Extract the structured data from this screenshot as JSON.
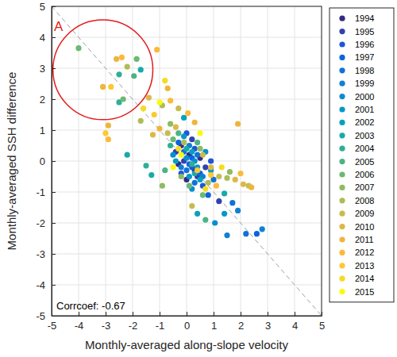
{
  "chart_data": {
    "type": "scatter",
    "x_label": "Monthly-averaged along-slope velocity",
    "y_label": "Monthly-averaged SSH difference",
    "xlim": [
      -5,
      5
    ],
    "ylim": [
      -5,
      5
    ],
    "xticks": [
      -5,
      -4,
      -3,
      -2,
      -1,
      0,
      1,
      2,
      3,
      4,
      5
    ],
    "yticks": [
      -5,
      -4,
      -3,
      -2,
      -1,
      0,
      1,
      2,
      3,
      4,
      5
    ],
    "grid": true,
    "legend": "right",
    "marker": "circle",
    "annotations": [
      {
        "text": "Corrcoef: -0.67"
      }
    ],
    "highlight": {
      "label": "A",
      "x": -3.1,
      "y": 2.95,
      "radius": 1.85,
      "color": "#e41a1c"
    },
    "reference_line": {
      "x": [
        -5,
        5
      ],
      "y": [
        5,
        -5
      ],
      "line_style": "dashed",
      "color": "#a0a0a0"
    },
    "series": [
      {
        "name": "1994",
        "color": "#352a87",
        "x": [
          0.1,
          -0.2,
          0.3,
          0.0,
          0.5,
          -0.3
        ],
        "y": [
          0.2,
          0.5,
          -0.3,
          -0.6,
          0.1,
          -0.1
        ]
      },
      {
        "name": "1995",
        "color": "#3340b0",
        "x": [
          1.2,
          0.2,
          -0.1,
          0.4,
          0.7,
          -0.4
        ],
        "y": [
          -1.3,
          0.7,
          0.0,
          -0.5,
          -0.2,
          0.3
        ]
      },
      {
        "name": "1996",
        "color": "#1d56db",
        "x": [
          0.0,
          0.2,
          -0.2,
          0.6,
          0.3,
          0.9
        ],
        "y": [
          0.9,
          -0.2,
          -0.4,
          -0.8,
          0.4,
          0.0
        ]
      },
      {
        "name": "1997",
        "color": "#0b64e1",
        "x": [
          2.6,
          0.1,
          -0.3,
          0.5,
          0.2,
          0.8
        ],
        "y": [
          -2.35,
          -0.1,
          0.6,
          -0.4,
          0.1,
          -1.1
        ]
      },
      {
        "name": "1998",
        "color": "#1072d9",
        "x": [
          2.2,
          1.7,
          0.3,
          -0.1,
          0.4,
          0.0,
          1.0
        ],
        "y": [
          -2.35,
          -1.35,
          -0.7,
          0.3,
          0.2,
          -0.3,
          -0.6
        ]
      },
      {
        "name": "1999",
        "color": "#1180d4",
        "x": [
          2.8,
          1.5,
          1.9,
          0.1,
          -0.2,
          0.6
        ],
        "y": [
          -2.2,
          -2.4,
          -1.6,
          0.5,
          -0.2,
          -0.5
        ]
      },
      {
        "name": "2000",
        "color": "#0a8dcf",
        "x": [
          1.05,
          0.3,
          -0.5,
          0.2,
          0.7,
          0.0
        ],
        "y": [
          -2.0,
          0.0,
          0.2,
          -0.9,
          0.3,
          0.1
        ]
      },
      {
        "name": "2001",
        "color": "#0499c6",
        "x": [
          1.4,
          0.4,
          -0.1,
          0.1,
          0.9
        ],
        "y": [
          -1.7,
          -0.2,
          0.8,
          -0.5,
          -0.3
        ]
      },
      {
        "name": "2002",
        "color": "#06a2bb",
        "x": [
          0.4,
          -0.1,
          0.2,
          -0.4,
          0.5
        ],
        "y": [
          -1.7,
          1.4,
          0.3,
          0.0,
          -0.6
        ]
      },
      {
        "name": "2003",
        "color": "#1aa9aa",
        "x": [
          -1.7,
          -2.2,
          -1.3,
          1.4,
          0.0,
          0.3
        ],
        "y": [
          2.95,
          0.2,
          -0.45,
          -1.05,
          0.4,
          -0.4
        ]
      },
      {
        "name": "2004",
        "color": "#2eaf98",
        "x": [
          -2.5,
          -2.5,
          -1.5,
          -0.6,
          0.2
        ],
        "y": [
          2.8,
          1.9,
          -0.15,
          0.5,
          -0.1
        ]
      },
      {
        "name": "2005",
        "color": "#4bb485",
        "x": [
          -1.95,
          -0.8,
          0.7,
          -0.3,
          0.4
        ],
        "y": [
          2.75,
          -0.3,
          -1.9,
          0.9,
          0.6
        ]
      },
      {
        "name": "2006",
        "color": "#6bb973",
        "x": [
          -4.0,
          -1.85,
          -2.35,
          0.6,
          -0.5,
          0.1
        ],
        "y": [
          3.65,
          3.3,
          2.0,
          -1.1,
          0.7,
          -0.8
        ]
      },
      {
        "name": "2007",
        "color": "#8ebb63",
        "x": [
          -0.9,
          1.6,
          -0.6,
          0.5,
          -0.2
        ],
        "y": [
          -0.8,
          -0.35,
          1.2,
          0.4,
          -0.5
        ]
      },
      {
        "name": "2008",
        "color": "#aebc56",
        "x": [
          -2.2,
          -1.7,
          -0.9,
          1.5,
          -0.1,
          0.8
        ],
        "y": [
          3.05,
          1.3,
          1.8,
          -0.55,
          0.6,
          -0.7
        ]
      },
      {
        "name": "2009",
        "color": "#c8bb4e",
        "x": [
          -0.3,
          0.2,
          1.2,
          2.3,
          -0.7,
          0.6
        ],
        "y": [
          1.7,
          -1.45,
          -0.5,
          -0.8,
          0.9,
          0.2
        ]
      },
      {
        "name": "2010",
        "color": "#dcb846",
        "x": [
          -1.4,
          -1.25,
          1.8,
          2.1,
          -0.4,
          0.9
        ],
        "y": [
          2.05,
          0.85,
          -0.6,
          -0.75,
          1.1,
          -0.2
        ]
      },
      {
        "name": "2011",
        "color": "#eeb53e",
        "x": [
          -2.6,
          -3.1,
          -2.9,
          -0.7,
          0.3,
          1.9,
          -1.0,
          2.4
        ],
        "y": [
          3.3,
          2.4,
          1.15,
          2.35,
          1.25,
          1.2,
          1.05,
          -0.85
        ]
      },
      {
        "name": "2012",
        "color": "#fbba38",
        "x": [
          -2.4,
          -1.1,
          -2.9,
          -0.6,
          0.05,
          2.0,
          1.1
        ],
        "y": [
          3.35,
          3.6,
          0.7,
          1.95,
          1.55,
          -0.4,
          -0.8
        ]
      },
      {
        "name": "2013",
        "color": "#fcc931",
        "x": [
          -2.8,
          -3.0,
          0.9,
          -1.2,
          0.4
        ],
        "y": [
          2.4,
          0.9,
          -0.45,
          1.5,
          -0.3
        ]
      },
      {
        "name": "2014",
        "color": "#f4dc23",
        "x": [
          -1.6,
          -0.8,
          0.7,
          -0.3,
          1.3
        ],
        "y": [
          1.7,
          2.6,
          -0.9,
          0.4,
          -0.2
        ]
      },
      {
        "name": "2015",
        "color": "#f9fb0e",
        "x": [
          -0.2,
          -1.0,
          0.5,
          -0.5
        ],
        "y": [
          0.2,
          1.9,
          0.9,
          -0.2
        ]
      }
    ]
  }
}
